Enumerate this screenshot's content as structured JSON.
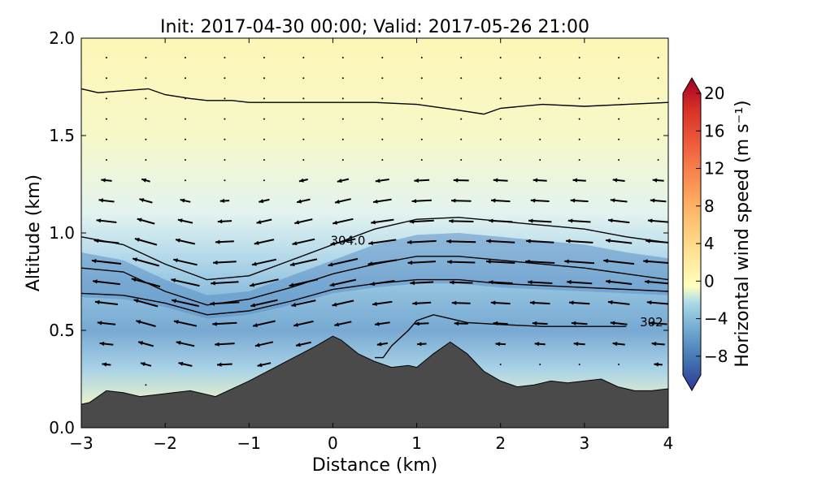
{
  "chart_data": {
    "type": "contour-section",
    "title": "Init: 2017-04-30 00:00; Valid: 2017-05-26 21:00",
    "xlabel": "Distance (km)",
    "ylabel": "Altitude (km)",
    "xlim": [
      -3,
      4
    ],
    "ylim": [
      0.0,
      2.0
    ],
    "xticks": [
      "−3",
      "−2",
      "−1",
      "0",
      "1",
      "2",
      "3",
      "4"
    ],
    "xtick_values": [
      -3,
      -2,
      -1,
      0,
      1,
      2,
      3,
      4
    ],
    "yticks": [
      "0.0",
      "0.5",
      "1.0",
      "1.5",
      "2.0"
    ],
    "ytick_values": [
      0.0,
      0.5,
      1.0,
      1.5,
      2.0
    ],
    "colorbar": {
      "label": "Horizontal wind speed (m s⁻¹)",
      "range": [
        -10,
        20
      ],
      "ticks": [
        "−8",
        "−4",
        "0",
        "4",
        "8",
        "12",
        "16",
        "20"
      ],
      "tick_values": [
        -8,
        -4,
        0,
        4,
        8,
        12,
        16,
        20
      ],
      "cmap": "RdYlBu_r",
      "extend": "both"
    },
    "terrain": {
      "x": [
        -3.0,
        -2.9,
        -2.7,
        -2.5,
        -2.3,
        -2.1,
        -1.9,
        -1.7,
        -1.4,
        -1.0,
        -0.6,
        -0.2,
        0.0,
        0.1,
        0.3,
        0.5,
        0.7,
        0.9,
        1.0,
        1.2,
        1.4,
        1.6,
        1.8,
        2.0,
        2.2,
        2.4,
        2.6,
        2.8,
        3.0,
        3.2,
        3.4,
        3.6,
        3.8,
        4.0
      ],
      "y": [
        0.12,
        0.13,
        0.19,
        0.18,
        0.16,
        0.17,
        0.18,
        0.19,
        0.16,
        0.24,
        0.33,
        0.42,
        0.47,
        0.45,
        0.38,
        0.34,
        0.31,
        0.32,
        0.31,
        0.38,
        0.44,
        0.38,
        0.29,
        0.24,
        0.21,
        0.22,
        0.24,
        0.23,
        0.24,
        0.25,
        0.21,
        0.19,
        0.19,
        0.2
      ]
    },
    "isentropes": [
      {
        "x": [
          -3.0,
          -2.8,
          -2.5,
          -2.2,
          -2.0,
          -1.7,
          -1.5,
          -1.2,
          -1.0,
          -0.5,
          0.0,
          0.5,
          1.0,
          1.5,
          1.8,
          2.0,
          2.5,
          3.0,
          3.5,
          4.0
        ],
        "y": [
          1.74,
          1.72,
          1.73,
          1.74,
          1.71,
          1.69,
          1.68,
          1.68,
          1.67,
          1.67,
          1.67,
          1.67,
          1.66,
          1.63,
          1.61,
          1.64,
          1.66,
          1.65,
          1.66,
          1.67
        ]
      },
      {
        "x": [
          -3.0,
          -2.5,
          -2.0,
          -1.5,
          -1.0,
          -0.5,
          0.0,
          0.5,
          1.0,
          1.5,
          2.0,
          2.5,
          3.0,
          3.5,
          4.0
        ],
        "y": [
          0.98,
          0.94,
          0.84,
          0.76,
          0.78,
          0.86,
          0.94,
          1.02,
          1.07,
          1.08,
          1.06,
          1.04,
          1.02,
          0.98,
          0.95
        ]
      },
      {
        "x": [
          -3.0,
          -2.5,
          -2.0,
          -1.5,
          -1.0,
          -0.5,
          0.0,
          0.5,
          1.0,
          1.5,
          2.0,
          2.5,
          3.0,
          3.5,
          4.0
        ],
        "y": [
          0.82,
          0.8,
          0.7,
          0.63,
          0.66,
          0.72,
          0.79,
          0.84,
          0.88,
          0.88,
          0.86,
          0.84,
          0.82,
          0.79,
          0.76
        ]
      },
      {
        "x": [
          -3.0,
          -2.5,
          -2.0,
          -1.5,
          -1.0,
          -0.5,
          0.0,
          0.5,
          1.0,
          1.5,
          2.0,
          2.5,
          3.0,
          3.5,
          4.0
        ],
        "y": [
          0.69,
          0.68,
          0.64,
          0.58,
          0.6,
          0.65,
          0.71,
          0.74,
          0.76,
          0.76,
          0.74,
          0.73,
          0.72,
          0.71,
          0.7
        ]
      },
      {
        "x": [
          0.5,
          0.6,
          0.7,
          0.8,
          0.9,
          1.0,
          1.2,
          1.4,
          1.6,
          2.0,
          2.5,
          3.0,
          3.5
        ],
        "y": [
          0.36,
          0.36,
          0.42,
          0.46,
          0.5,
          0.55,
          0.58,
          0.56,
          0.54,
          0.53,
          0.52,
          0.52,
          0.52
        ]
      }
    ],
    "contour_labels": [
      {
        "text": "304.0",
        "x": 0.18,
        "y": 0.94
      },
      {
        "text": "302",
        "x": 3.8,
        "y": 0.52
      }
    ]
  }
}
